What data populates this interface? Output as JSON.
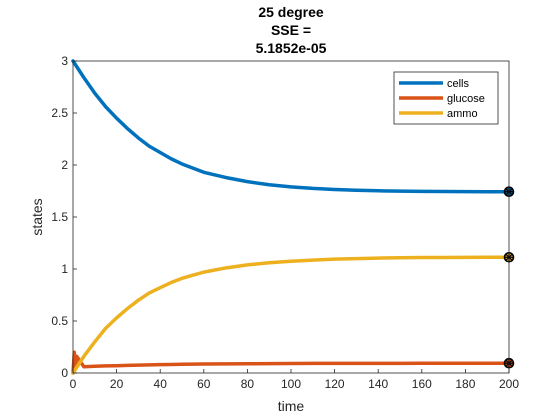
{
  "chart_data": {
    "type": "line",
    "title_lines": [
      "25 degree",
      "SSE =",
      "5.1852e-05"
    ],
    "xlabel": "time",
    "ylabel": "states",
    "xlim": [
      0,
      200
    ],
    "ylim": [
      0,
      3
    ],
    "xticks": [
      0,
      20,
      40,
      60,
      80,
      100,
      120,
      140,
      160,
      180,
      200
    ],
    "yticks": [
      0,
      0.5,
      1,
      1.5,
      2,
      2.5,
      3
    ],
    "ytick_labels": [
      "0",
      "0.5",
      "1",
      "1.5",
      "2",
      "2.5",
      "3"
    ],
    "grid": false,
    "legend_position": "top-right",
    "x": [
      0,
      5,
      10,
      15,
      20,
      25,
      30,
      35,
      40,
      45,
      50,
      55,
      60,
      70,
      80,
      90,
      100,
      110,
      120,
      130,
      140,
      150,
      160,
      170,
      180,
      190,
      200
    ],
    "series": [
      {
        "name": "cells",
        "color": "#0072bd",
        "values": [
          3.0,
          2.84,
          2.69,
          2.56,
          2.45,
          2.35,
          2.26,
          2.18,
          2.12,
          2.06,
          2.01,
          1.97,
          1.93,
          1.88,
          1.84,
          1.81,
          1.79,
          1.775,
          1.765,
          1.757,
          1.752,
          1.749,
          1.746,
          1.745,
          1.744,
          1.743,
          1.743
        ]
      },
      {
        "name": "glucose",
        "color": "#d95319",
        "values": [
          0.0,
          0.06,
          0.065,
          0.068,
          0.07,
          0.073,
          0.076,
          0.078,
          0.08,
          0.082,
          0.084,
          0.085,
          0.086,
          0.088,
          0.089,
          0.09,
          0.091,
          0.092,
          0.092,
          0.093,
          0.093,
          0.093,
          0.094,
          0.094,
          0.094,
          0.094,
          0.094
        ]
      },
      {
        "name": "ammo",
        "color": "#edb120",
        "values": [
          0.0,
          0.16,
          0.3,
          0.43,
          0.53,
          0.62,
          0.7,
          0.77,
          0.82,
          0.87,
          0.91,
          0.94,
          0.97,
          1.01,
          1.04,
          1.06,
          1.075,
          1.085,
          1.095,
          1.1,
          1.105,
          1.108,
          1.11,
          1.111,
          1.112,
          1.113,
          1.113
        ]
      }
    ],
    "glucose_initial_spike": {
      "x": [
        0.6,
        1.1,
        1.7
      ],
      "values": [
        0.2,
        0.05,
        0.16
      ]
    },
    "end_markers": [
      {
        "series": "cells",
        "x": 200,
        "y": 1.743
      },
      {
        "series": "ammo",
        "x": 200,
        "y": 1.113
      },
      {
        "series": "glucose",
        "x": 200,
        "y": 0.094
      }
    ]
  }
}
